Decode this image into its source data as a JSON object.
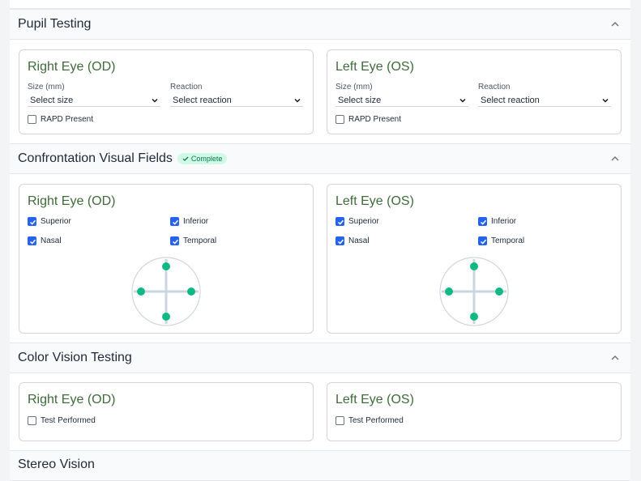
{
  "pupil": {
    "title": "Pupil Testing",
    "right": {
      "title": "Right Eye (OD)",
      "size_label": "Size (mm)",
      "size_value": "Select size",
      "reaction_label": "Reaction",
      "reaction_value": "Select reaction",
      "rapd_label": "RAPD Present",
      "rapd_checked": false
    },
    "left": {
      "title": "Left Eye (OS)",
      "size_label": "Size (mm)",
      "size_value": "Select size",
      "reaction_label": "Reaction",
      "reaction_value": "Select reaction",
      "rapd_label": "RAPD Present",
      "rapd_checked": false
    }
  },
  "cvf": {
    "title": "Confrontation Visual Fields",
    "badge": "Complete",
    "right": {
      "title": "Right Eye (OD)",
      "superior": "Superior",
      "inferior": "Inferior",
      "nasal": "Nasal",
      "temporal": "Temporal"
    },
    "left": {
      "title": "Left Eye (OS)",
      "superior": "Superior",
      "inferior": "Inferior",
      "nasal": "Nasal",
      "temporal": "Temporal"
    }
  },
  "color_vision": {
    "title": "Color Vision Testing",
    "right": {
      "title": "Right Eye (OD)",
      "test_label": "Test Performed"
    },
    "left": {
      "title": "Left Eye (OS)",
      "test_label": "Test Performed"
    }
  },
  "next_section": {
    "title": "Stereo Vision"
  },
  "colors": {
    "eye_title": "#3f6b3a",
    "checkbox": "#2563eb",
    "dot": "#10b981",
    "badge_bg": "#d1fae5"
  },
  "icons": {
    "chevron": "chevron-up-icon",
    "check": "check-icon",
    "caret": "chevron-down-icon"
  }
}
